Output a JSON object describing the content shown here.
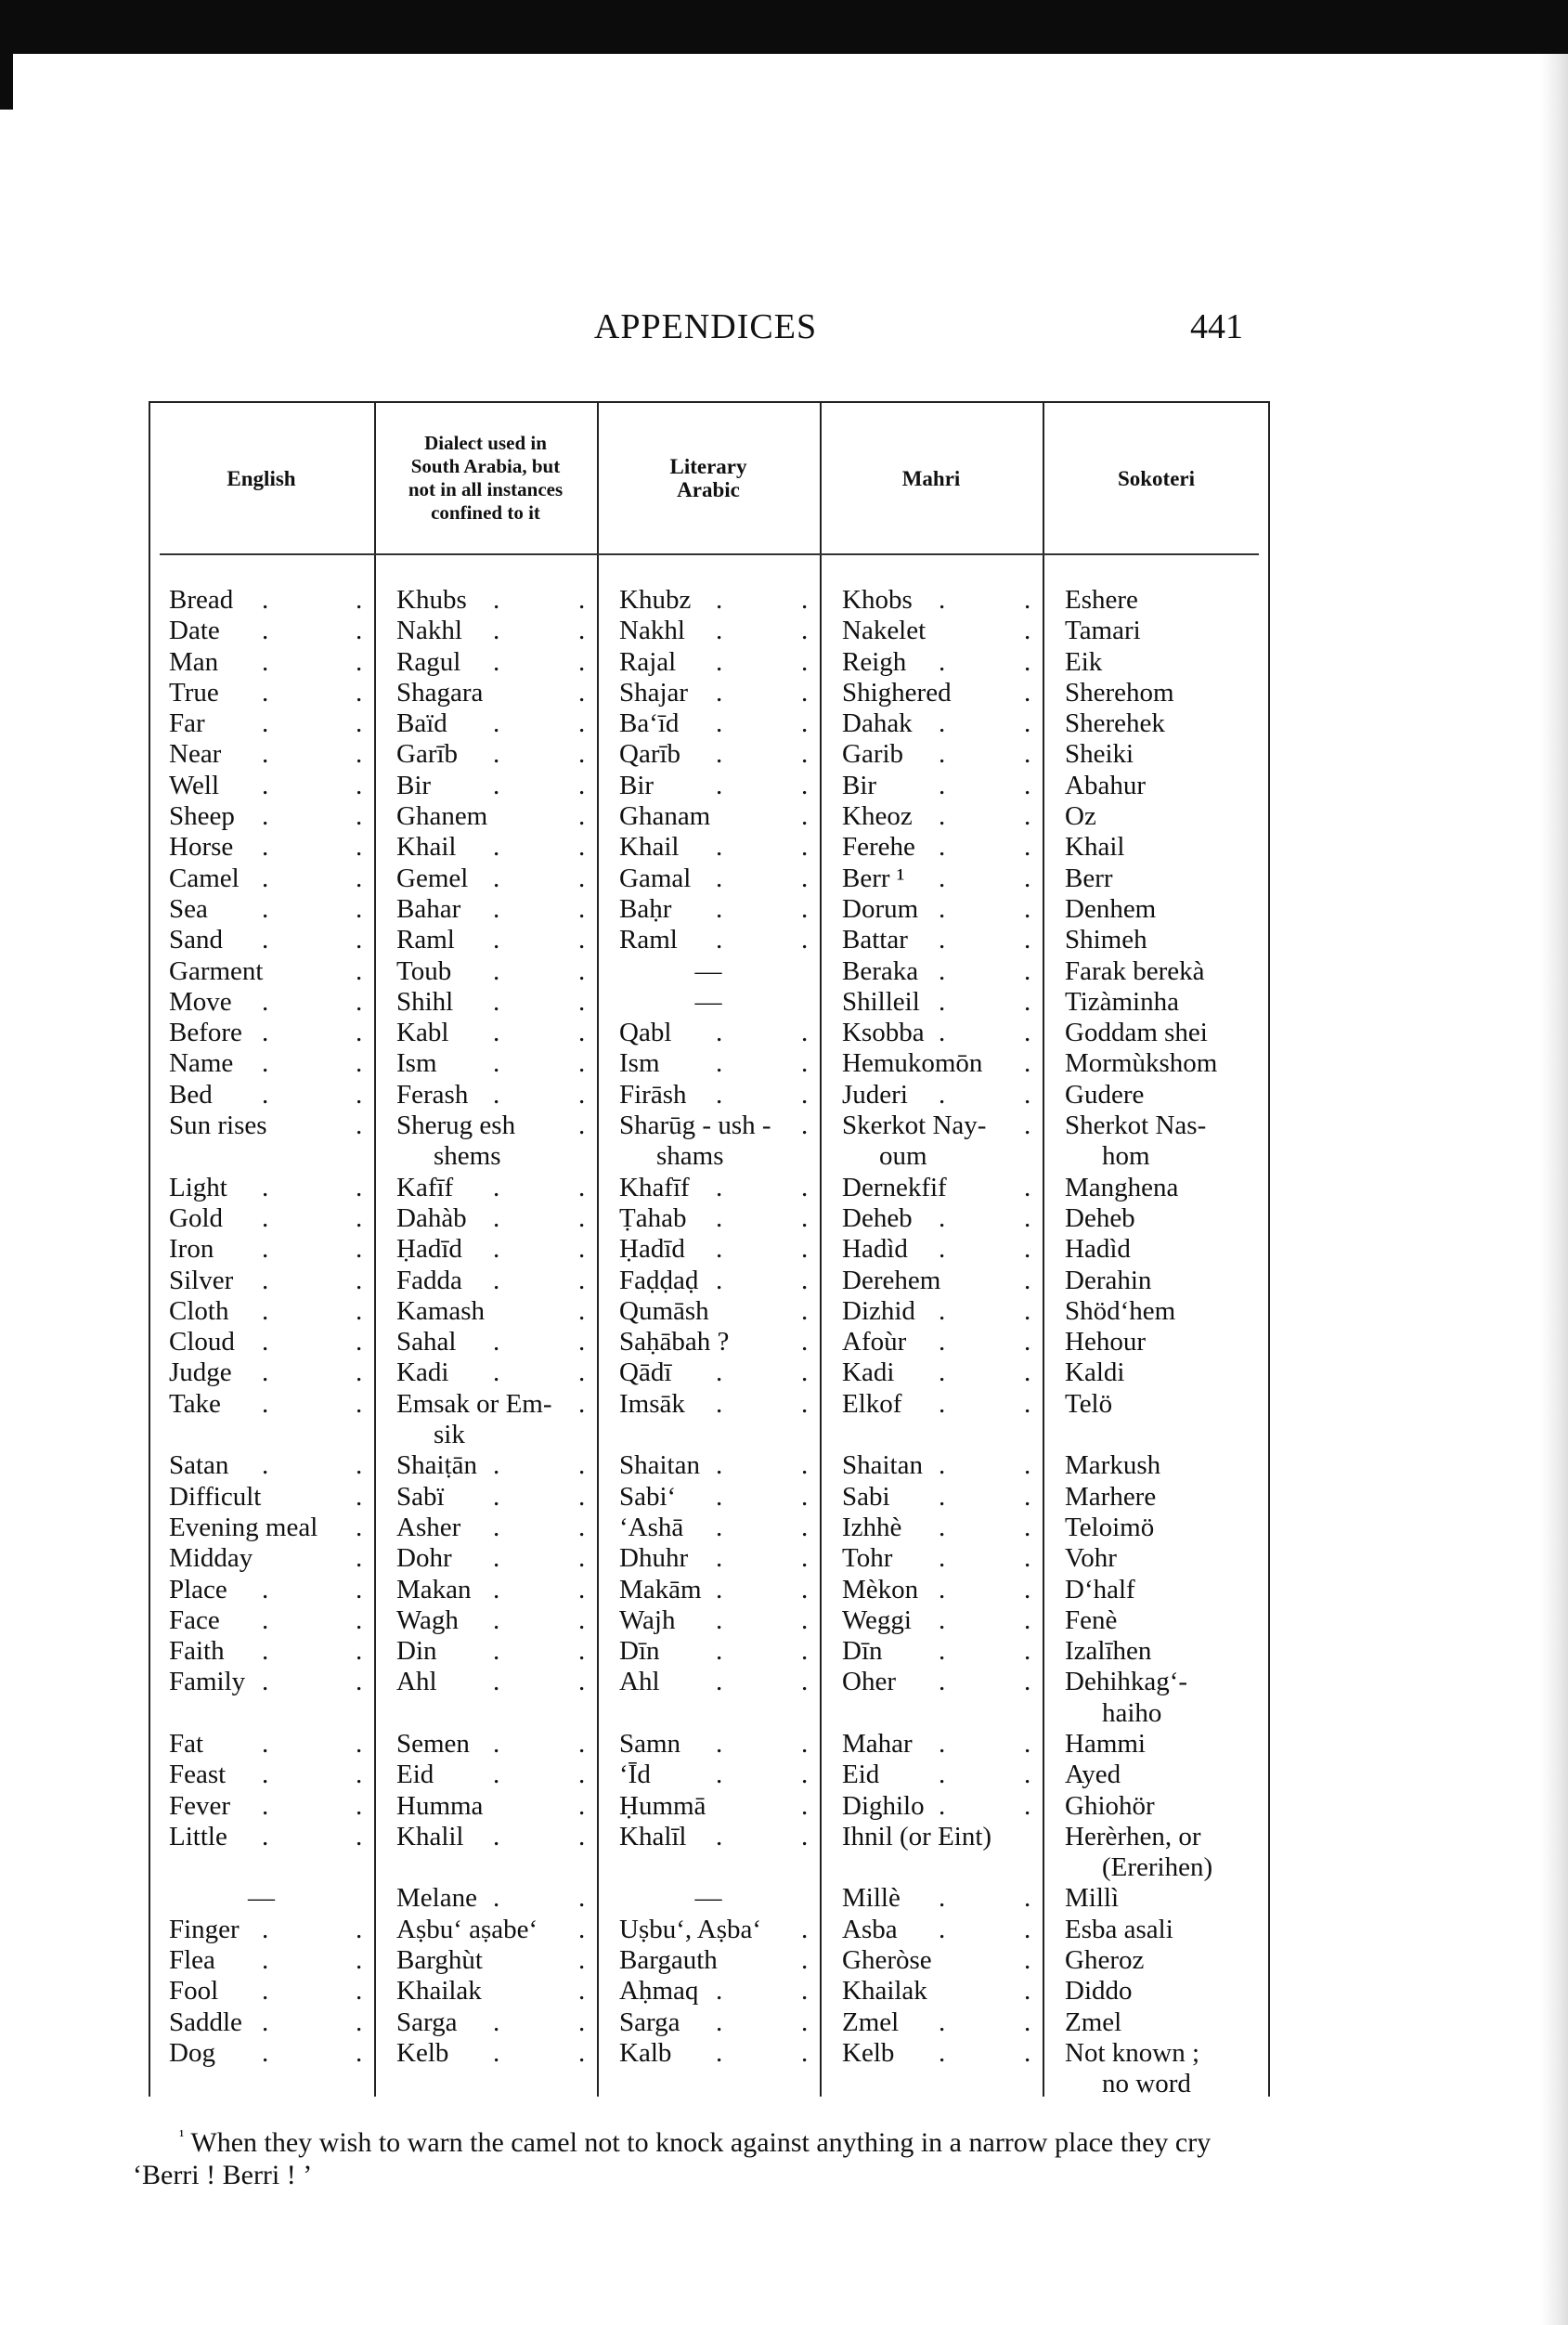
{
  "header": {
    "title": "APPENDICES",
    "page_number": "441"
  },
  "table": {
    "columns": [
      "English",
      "Dialect used in South Arabia, but not in all instances confined to it",
      "Literary Arabic",
      "Mahri",
      "Sokoteri"
    ],
    "rows": [
      [
        "Bread",
        "Khubs",
        "Khubz",
        "Khobs",
        "Eshere"
      ],
      [
        "Date",
        "Nakhl",
        "Nakhl",
        "Nakelet",
        "Tamari"
      ],
      [
        "Man",
        "Ragul",
        "Rajal",
        "Reigh",
        "Eik"
      ],
      [
        "True",
        "Shagara",
        "Shajar",
        "Shighered",
        "Sherehom"
      ],
      [
        "Far",
        "Baïd",
        "Ba‘īd",
        "Dahak",
        "Sherehek"
      ],
      [
        "Near",
        "Garīb",
        "Qarīb",
        "Garib",
        "Sheiki"
      ],
      [
        "Well",
        "Bir",
        "Bir",
        "Bir",
        "Abahur"
      ],
      [
        "Sheep",
        "Ghanem",
        "Ghanam",
        "Kheoz",
        "Oz"
      ],
      [
        "Horse",
        "Khail",
        "Khail",
        "Ferehe",
        "Khail"
      ],
      [
        "Camel",
        "Gemel",
        "Gamal",
        "Berr ¹",
        "Berr"
      ],
      [
        "Sea",
        "Bahar",
        "Baḥr",
        "Dorum",
        "Denhem"
      ],
      [
        "Sand",
        "Raml",
        "Raml",
        "Battar",
        "Shimeh"
      ],
      [
        "Garment",
        "Toub",
        "—",
        "Beraka",
        "Farak berekà"
      ],
      [
        "Move",
        "Shihl",
        "—",
        "Shilleil",
        "Tizàminha"
      ],
      [
        "Before",
        "Kabl",
        "Qabl",
        "Ksobba",
        "Goddam shei"
      ],
      [
        "Name",
        "Ism",
        "Ism",
        "Hemukomōn",
        "Mormùkshom"
      ],
      [
        "Bed",
        "Ferash",
        "Firāsh",
        "Juderi",
        "Gudere"
      ],
      [
        "Sun rises",
        "Sherug esh\nshems",
        "Sharūg - ush -\nshams",
        "Skerkot Nay-\noum",
        "Sherkot Nas-\nhom"
      ],
      [
        "Light",
        "Kafīf",
        "Khafīf",
        "Dernekfif",
        "Manghena"
      ],
      [
        "Gold",
        "Dahàb",
        "Ṭahab",
        "Deheb",
        "Deheb"
      ],
      [
        "Iron",
        "Ḥadīd",
        "Ḥadīd",
        "Hadìd",
        "Hadìd"
      ],
      [
        "Silver",
        "Fadda",
        "Faḍḍaḍ",
        "Derehem",
        "Derahin"
      ],
      [
        "Cloth",
        "Kamash",
        "Qumāsh",
        "Dizhid",
        "Shöd‘hem"
      ],
      [
        "Cloud",
        "Sahal",
        "Saḥābah ?",
        "Afoùr",
        "Hehour"
      ],
      [
        "Judge",
        "Kadi",
        "Qādī",
        "Kadi",
        "Kaldi"
      ],
      [
        "Take",
        "Emsak or Em-\nsik",
        "Imsāk",
        "Elkof",
        "Telö"
      ],
      [
        "Satan",
        "Shaiṭān",
        "Shaitan",
        "Shaitan",
        "Markush"
      ],
      [
        "Difficult",
        "Sabï",
        "Sabi‘",
        "Sabi",
        "Marhere"
      ],
      [
        "Evening meal",
        "Asher",
        "‘Ashā",
        "Izhhè",
        "Teloimö"
      ],
      [
        "Midday",
        "Dohr",
        "Dhuhr",
        "Tohr",
        "Vohr"
      ],
      [
        "Place",
        "Makan",
        "Makām",
        "Mèkon",
        "D‘half"
      ],
      [
        "Face",
        "Wagh",
        "Wajh",
        "Weggi",
        "Fenè"
      ],
      [
        "Faith",
        "Din",
        "Dīn",
        "Dīn",
        "Izalīhen"
      ],
      [
        "Family",
        "Ahl",
        "Ahl",
        "Oher",
        "Dehihkag‘-\nhaiho"
      ],
      [
        "Fat",
        "Semen",
        "Samn",
        "Mahar",
        "Hammi"
      ],
      [
        "Feast",
        "Eid",
        "‘Īd",
        "Eid",
        "Ayed"
      ],
      [
        "Fever",
        "Humma",
        "Ḥummā",
        "Dighilo",
        "Ghiohör"
      ],
      [
        "Little",
        "Khalil",
        "Khalīl",
        "Ihnil (or Eint)",
        "Herèrhen, or\n(Ererihen)"
      ],
      [
        "—",
        "Melane",
        "—",
        "Millè",
        "Millì"
      ],
      [
        "Finger",
        "Aṣbu‘ aṣabe‘",
        "Uṣbu‘, Aṣba‘",
        "Asba",
        "Esba asali"
      ],
      [
        "Flea",
        "Barghùt",
        "Bargauth",
        "Gheròse",
        "Gheroz"
      ],
      [
        "Fool",
        "Khailak",
        "Aḥmaq",
        "Khailak",
        "Diddo"
      ],
      [
        "Saddle",
        "Sarga",
        "Sarga",
        "Zmel",
        "Zmel"
      ],
      [
        "Dog",
        "Kelb",
        "Kalb",
        "Kelb",
        "Not known ;\nno word"
      ]
    ]
  },
  "footnote": {
    "marker": "¹",
    "text": "When they wish to warn the camel not to knock against anything in a narrow place they cry ‘Berri ! Berri ! ’"
  }
}
